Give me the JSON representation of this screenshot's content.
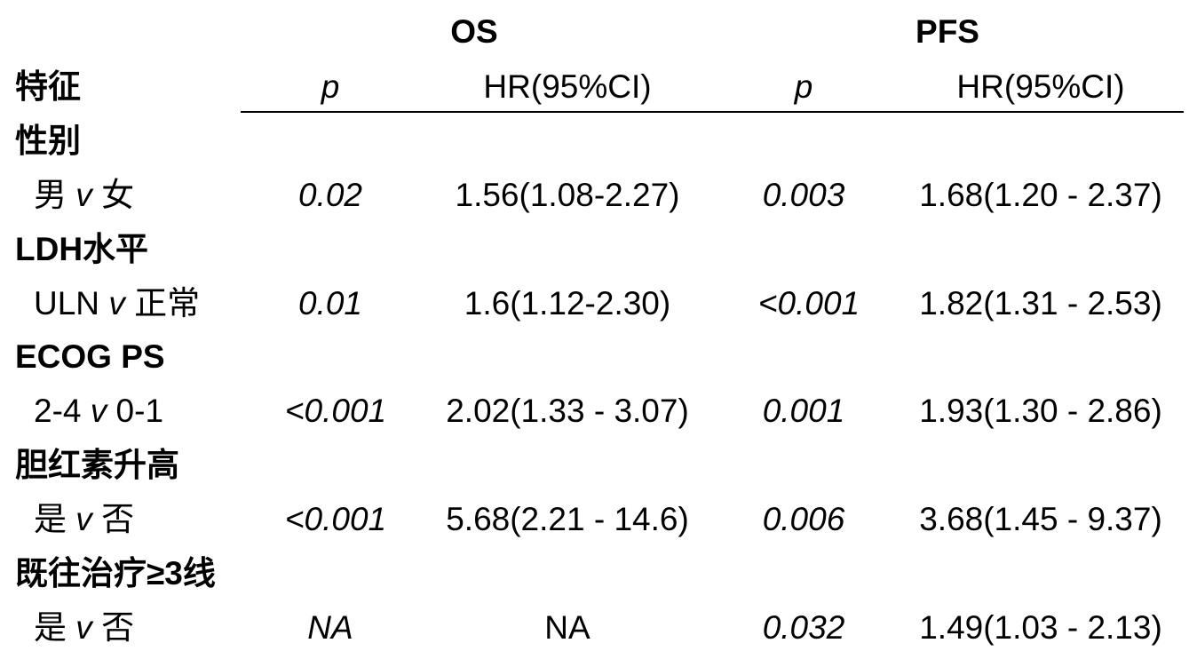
{
  "groups": {
    "os": "OS",
    "pfs": "PFS"
  },
  "columns": {
    "feature": "特征",
    "os_p": "p",
    "os_hr": "HR(95%CI)",
    "pfs_p": "p",
    "pfs_hr": "HR(95%CI)"
  },
  "rows": [
    {
      "category": "性别",
      "comparison_a": "男",
      "v": "v",
      "comparison_b": "女",
      "os_p": "0.02",
      "os_hr": "1.56(1.08-2.27)",
      "pfs_p": "0.003",
      "pfs_hr": "1.68(1.20 - 2.37)"
    },
    {
      "category": "LDH水平",
      "comparison_a": "ULN",
      "v": "v",
      "comparison_b": "正常",
      "os_p": "0.01",
      "os_hr": "1.6(1.12-2.30)",
      "pfs_p": "<0.001",
      "pfs_hr": "1.82(1.31 - 2.53)"
    },
    {
      "category": "ECOG PS",
      "comparison_a": "2-4",
      "v": "v",
      "comparison_b": "0-1",
      "os_p": "<0.001",
      "os_hr": "2.02(1.33 - 3.07)",
      "pfs_p": "0.001",
      "pfs_hr": "1.93(1.30 - 2.86)"
    },
    {
      "category": "胆红素升高",
      "comparison_a": "是",
      "v": "v",
      "comparison_b": "否",
      "os_p": "<0.001",
      "os_hr": "5.68(2.21 - 14.6)",
      "pfs_p": "0.006",
      "pfs_hr": "3.68(1.45 - 9.37)"
    },
    {
      "category": "既往治疗≥3线",
      "comparison_a": "是",
      "v": "v",
      "comparison_b": "否",
      "os_p": "NA",
      "os_hr": "NA",
      "pfs_p": "0.032",
      "pfs_hr": "1.49(1.03 - 2.13)"
    }
  ]
}
